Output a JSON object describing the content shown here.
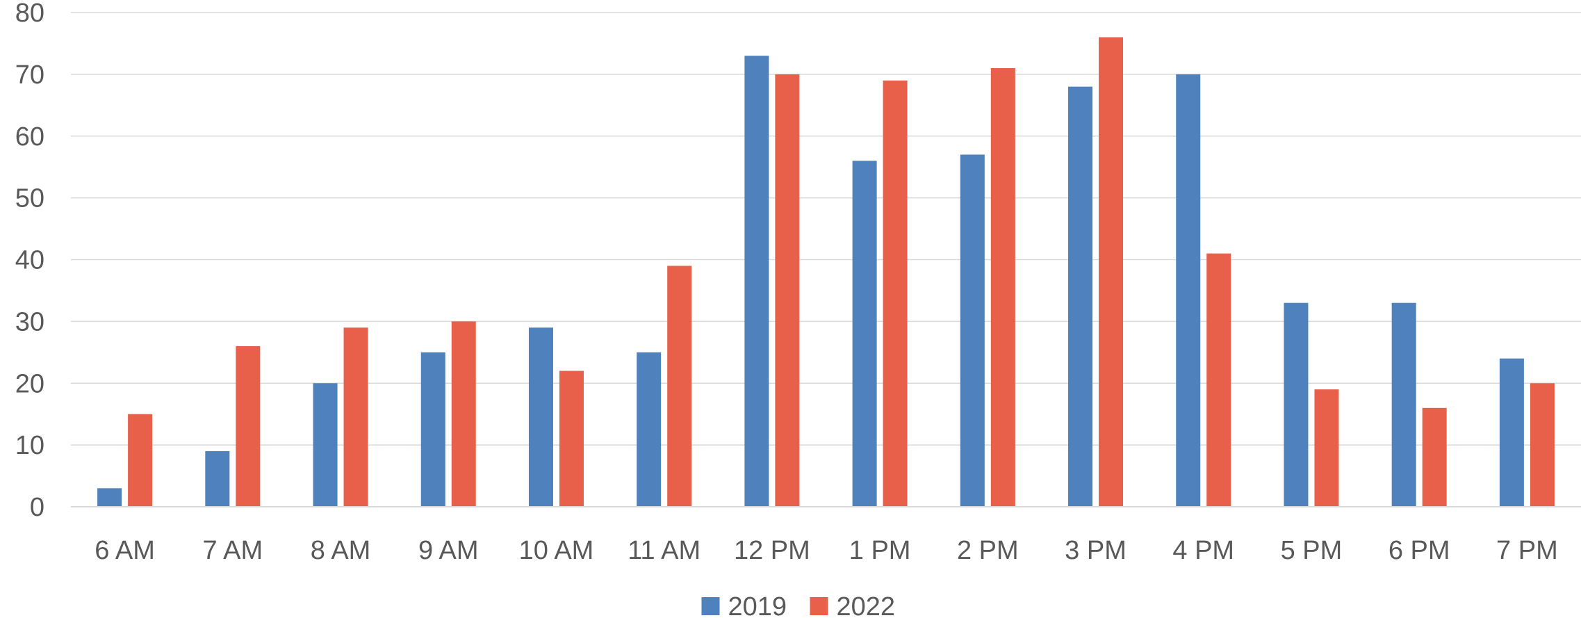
{
  "chart_data": {
    "type": "bar",
    "title": "",
    "xlabel": "",
    "ylabel": "",
    "categories": [
      "6 AM",
      "7 AM",
      "8 AM",
      "9 AM",
      "10 AM",
      "11 AM",
      "12 PM",
      "1 PM",
      "2 PM",
      "3 PM",
      "4 PM",
      "5 PM",
      "6 PM",
      "7 PM"
    ],
    "series": [
      {
        "name": "2019",
        "color": "#4F81BD",
        "values": [
          3,
          9,
          20,
          25,
          29,
          25,
          73,
          56,
          57,
          68,
          70,
          33,
          33,
          24
        ]
      },
      {
        "name": "2022",
        "color": "#E8604A",
        "values": [
          15,
          26,
          29,
          30,
          22,
          39,
          70,
          69,
          71,
          76,
          41,
          19,
          16,
          20
        ]
      }
    ],
    "ylim": [
      0,
      80
    ],
    "yticks": [
      0,
      10,
      20,
      30,
      40,
      50,
      60,
      70,
      80
    ],
    "grid": true,
    "legend_position": "bottom-center"
  }
}
